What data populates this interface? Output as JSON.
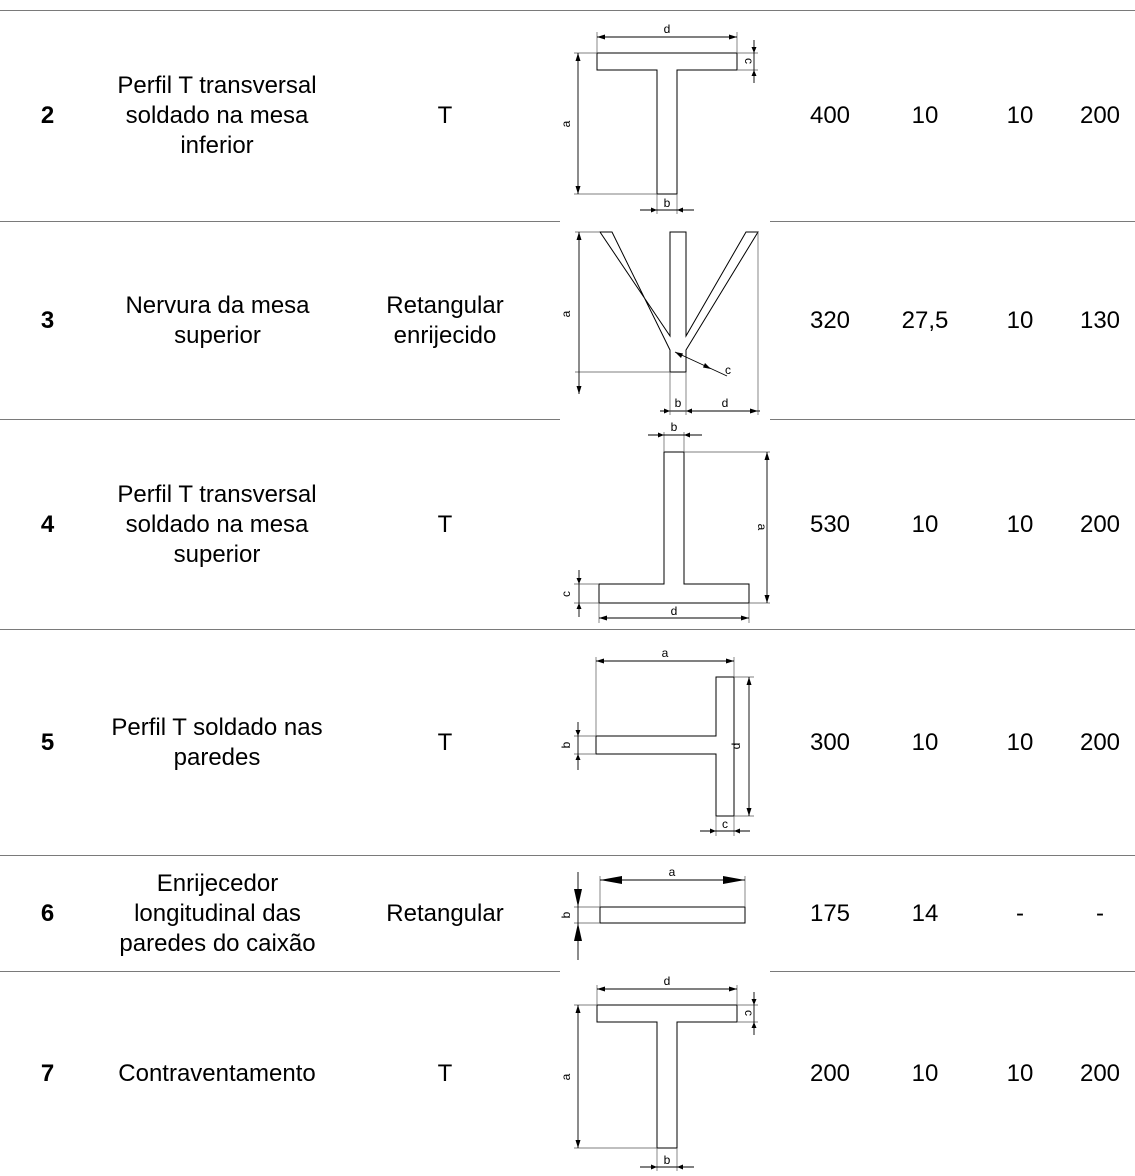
{
  "rows": [
    {
      "num": "2",
      "description": "Perfil T transversal soldado na mesa inferior",
      "type": "T",
      "figure": {
        "labels": [
          "a",
          "b",
          "c",
          "d"
        ]
      },
      "values": [
        "400",
        "10",
        "10",
        "200"
      ]
    },
    {
      "num": "3",
      "description": "Nervura da mesa superior",
      "type": "Retangular enrijecido",
      "figure": {
        "labels": [
          "a",
          "b",
          "c",
          "d"
        ]
      },
      "values": [
        "320",
        "27,5",
        "10",
        "130"
      ]
    },
    {
      "num": "4",
      "description": "Perfil T transversal soldado na mesa superior",
      "type": "T",
      "figure": {
        "labels": [
          "a",
          "b",
          "c",
          "d"
        ]
      },
      "values": [
        "530",
        "10",
        "10",
        "200"
      ]
    },
    {
      "num": "5",
      "description": "Perfil T soldado nas paredes",
      "type": "T",
      "figure": {
        "labels": [
          "a",
          "b",
          "c",
          "d"
        ]
      },
      "values": [
        "300",
        "10",
        "10",
        "200"
      ]
    },
    {
      "num": "6",
      "description": "Enrijecedor longitudinal das paredes do caixão",
      "type": "Retangular",
      "figure": {
        "labels": [
          "a",
          "b"
        ]
      },
      "values": [
        "175",
        "14",
        "-",
        "-"
      ]
    },
    {
      "num": "7",
      "description": "Contraventamento",
      "type": "T",
      "figure": {
        "labels": [
          "a",
          "b",
          "c",
          "d"
        ]
      },
      "values": [
        "200",
        "10",
        "10",
        "200"
      ]
    }
  ]
}
